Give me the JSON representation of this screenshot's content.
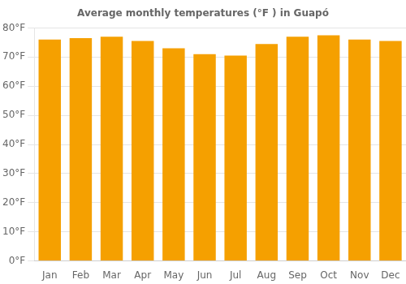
{
  "chart_data": {
    "type": "bar",
    "title": "Average monthly temperatures (°F ) in Guapó",
    "categories": [
      "Jan",
      "Feb",
      "Mar",
      "Apr",
      "May",
      "Jun",
      "Jul",
      "Aug",
      "Sep",
      "Oct",
      "Nov",
      "Dec"
    ],
    "values": [
      76,
      76.5,
      77,
      75.5,
      73,
      71,
      70.5,
      74.5,
      77,
      77.5,
      76,
      75.5
    ],
    "color": "#F5A000",
    "ylim": [
      0,
      80
    ],
    "yticks": [
      {
        "value": 0,
        "label": "0°F"
      },
      {
        "value": 10,
        "label": "10°F"
      },
      {
        "value": 20,
        "label": "20°F"
      },
      {
        "value": 30,
        "label": "30°F"
      },
      {
        "value": 40,
        "label": "40°F"
      },
      {
        "value": 50,
        "label": "50°F"
      },
      {
        "value": 60,
        "label": "60°F"
      },
      {
        "value": 70,
        "label": "70°F"
      },
      {
        "value": 80,
        "label": "80°F"
      }
    ],
    "grid": true
  }
}
